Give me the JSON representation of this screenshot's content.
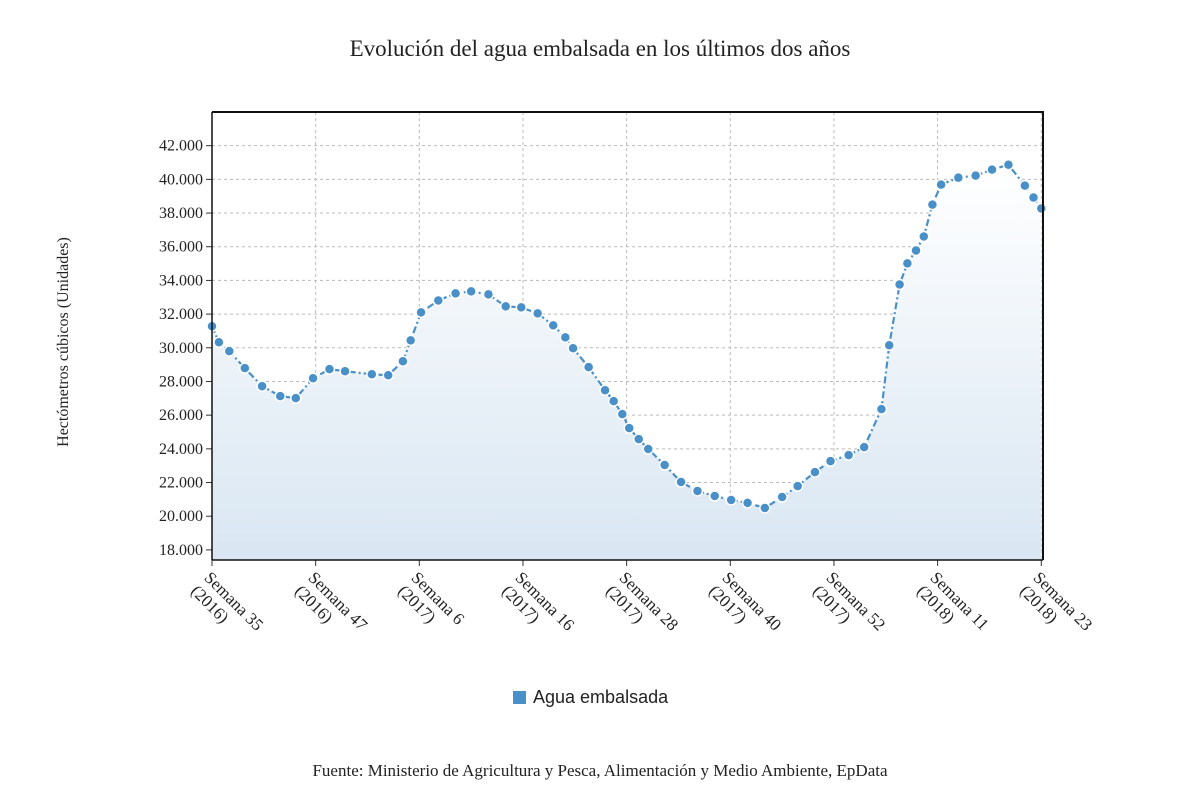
{
  "chart_data": {
    "type": "line",
    "title": "Evolución del agua embalsada en los últimos dos años",
    "y_label": "Hectómetros cúbicos (Unidades)",
    "source": "Fuente: Ministerio de Agricultura y Pesca, Alimentación y Medio Ambiente, EpData",
    "x": [
      0,
      0.8,
      2,
      3.8,
      5.8,
      7.9,
      9.7,
      11.7,
      13.6,
      15.4,
      18.5,
      20.4,
      22.1,
      23,
      24.2,
      26.2,
      28.2,
      30,
      32,
      34,
      35.8,
      37.7,
      39.5,
      40.9,
      41.8,
      43.6,
      45.5,
      46.5,
      47.5,
      48.3,
      49.4,
      50.5,
      52.4,
      54.3,
      56.2,
      58.2,
      60.1,
      62,
      64,
      66,
      67.8,
      69.8,
      71.6,
      73.7,
      75.5,
      77.5,
      78.4,
      79.6,
      80.5,
      81.5,
      82.4,
      83.4,
      84.4,
      86.4,
      88.4,
      90.3,
      92.2,
      94.1,
      95.1,
      96
    ],
    "series": [
      {
        "name": "Agua embalsada",
        "color": "#4a90c8",
        "values": [
          31280,
          30330,
          29800,
          28790,
          27720,
          27130,
          27010,
          28190,
          28730,
          28610,
          28430,
          28370,
          29200,
          30440,
          32100,
          32810,
          33230,
          33350,
          33170,
          32460,
          32400,
          32040,
          31330,
          30620,
          29970,
          28850,
          27480,
          26830,
          26060,
          25230,
          24580,
          23990,
          23040,
          22030,
          21500,
          21200,
          20960,
          20790,
          20490,
          21140,
          21790,
          22620,
          23270,
          23630,
          24100,
          26360,
          30150,
          33760,
          35010,
          35780,
          36610,
          38500,
          39690,
          40100,
          40220,
          40580,
          40870,
          39630,
          38920,
          38270
        ]
      }
    ],
    "xlim": [
      0,
      96.2
    ],
    "xticks": [
      {
        "value": 0,
        "label": "Semana 35 (2016)"
      },
      {
        "value": 12,
        "label": "Semana 47 (2016)"
      },
      {
        "value": 24,
        "label": "Semana 6 (2017)"
      },
      {
        "value": 36,
        "label": "Semana 16 (2017)"
      },
      {
        "value": 48,
        "label": "Semana 28 (2017)"
      },
      {
        "value": 60,
        "label": "Semana 40 (2017)"
      },
      {
        "value": 72,
        "label": "Semana 52 (2017)"
      },
      {
        "value": 84,
        "label": "Semana 11 (2018)"
      },
      {
        "value": 96,
        "label": "Semana 23 (2018)"
      }
    ],
    "ylim": [
      17400,
      44000
    ],
    "yticks": [
      {
        "value": 18000,
        "label": "18.000"
      },
      {
        "value": 20000,
        "label": "20.000"
      },
      {
        "value": 22000,
        "label": "22.000"
      },
      {
        "value": 24000,
        "label": "24.000"
      },
      {
        "value": 26000,
        "label": "26.000"
      },
      {
        "value": 28000,
        "label": "28.000"
      },
      {
        "value": 30000,
        "label": "30.000"
      },
      {
        "value": 32000,
        "label": "32.000"
      },
      {
        "value": 34000,
        "label": "34.000"
      },
      {
        "value": 36000,
        "label": "36.000"
      },
      {
        "value": 38000,
        "label": "38.000"
      },
      {
        "value": 40000,
        "label": "40.000"
      },
      {
        "value": 42000,
        "label": "42.000"
      }
    ],
    "grid": true,
    "legend": "bottom"
  }
}
